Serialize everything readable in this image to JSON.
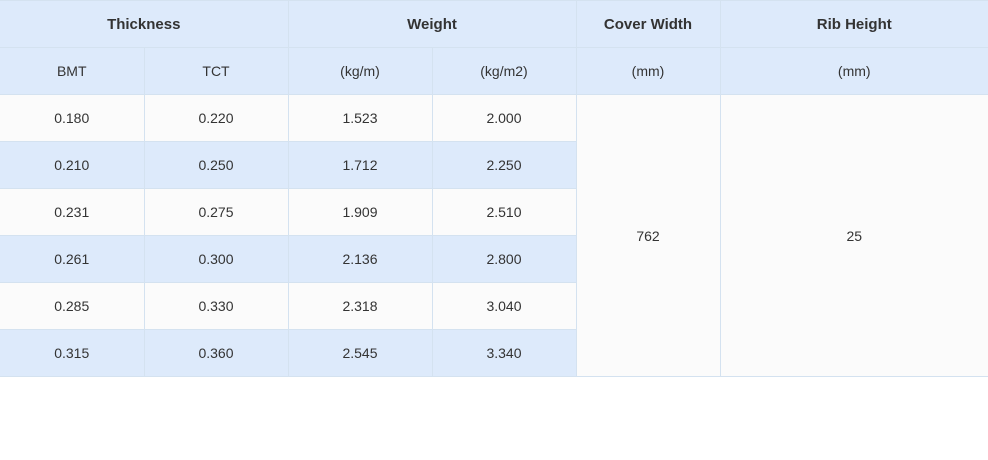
{
  "table": {
    "group_headers": {
      "thickness": "Thickness",
      "weight": "Weight",
      "cover_width": "Cover Width",
      "rib_height": "Rib Height"
    },
    "sub_headers": {
      "bmt": "BMT",
      "tct": "TCT",
      "kg_per_m": "(kg/m)",
      "kg_per_m2": "(kg/m2)",
      "cover_width_unit": "(mm)",
      "rib_height_unit": "(mm)"
    },
    "rows": [
      {
        "bmt": "0.180",
        "tct": "0.220",
        "kg_m": "1.523",
        "kg_m2": "2.000"
      },
      {
        "bmt": "0.210",
        "tct": "0.250",
        "kg_m": "1.712",
        "kg_m2": "2.250"
      },
      {
        "bmt": "0.231",
        "tct": "0.275",
        "kg_m": "1.909",
        "kg_m2": "2.510"
      },
      {
        "bmt": "0.261",
        "tct": "0.300",
        "kg_m": "2.136",
        "kg_m2": "2.800"
      },
      {
        "bmt": "0.285",
        "tct": "0.330",
        "kg_m": "2.318",
        "kg_m2": "3.040"
      },
      {
        "bmt": "0.315",
        "tct": "0.360",
        "kg_m": "2.545",
        "kg_m2": "3.340"
      }
    ],
    "cover_width_value": "762",
    "rib_height_value": "25"
  }
}
